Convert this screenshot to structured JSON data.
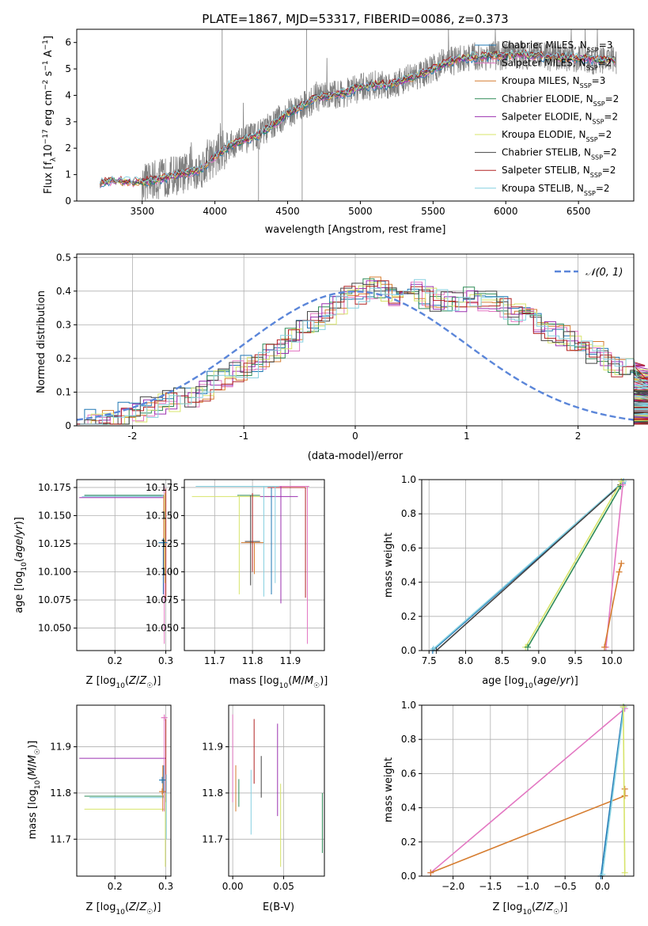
{
  "figure": {
    "title": "PLATE=1867, MJD=53317, FIBERID=0086, z=0.373"
  },
  "colors": {
    "Chabrier MILES": "#1f77b4",
    "Salpeter MILES": "#e377c2",
    "Kroupa MILES": "#d67d30",
    "Chabrier ELODIE": "#2e8b57",
    "Salpeter ELODIE": "#9b30b0",
    "Kroupa ELODIE": "#d7e46a",
    "Chabrier STELIB": "#444444",
    "Salpeter STELIB": "#b22222",
    "Kroupa STELIB": "#86d0e0",
    "observed": "#808080",
    "normal": "#5b86d9"
  },
  "legend": [
    {
      "name": "Chabrier MILES",
      "nssp": "3"
    },
    {
      "name": "Salpeter MILES",
      "nssp": "2"
    },
    {
      "name": "Kroupa MILES",
      "nssp": "3"
    },
    {
      "name": "Chabrier ELODIE",
      "nssp": "2"
    },
    {
      "name": "Salpeter ELODIE",
      "nssp": "2"
    },
    {
      "name": "Kroupa ELODIE",
      "nssp": "2"
    },
    {
      "name": "Chabrier STELIB",
      "nssp": "2"
    },
    {
      "name": "Salpeter STELIB",
      "nssp": "2"
    },
    {
      "name": "Kroupa STELIB",
      "nssp": "2"
    }
  ],
  "chart_data": [
    {
      "id": "spectrum",
      "type": "line",
      "xlabel": "wavelength [Angstrom, rest frame]",
      "ylabel": "Flux [f_λ 10^-17 erg cm^-2 s^-1 A^-1]",
      "xlim": [
        3050,
        6880
      ],
      "ylim": [
        0,
        6.5
      ],
      "xticks": [
        3500,
        4000,
        4500,
        5000,
        5500,
        6000,
        6500
      ],
      "yticks": [
        0,
        1,
        2,
        3,
        4,
        5,
        6
      ],
      "grid": false,
      "legend_position": "right",
      "model_continuum": [
        [
          3210,
          0.7
        ],
        [
          3300,
          0.78
        ],
        [
          3400,
          0.72
        ],
        [
          3500,
          0.72
        ],
        [
          3600,
          0.8
        ],
        [
          3700,
          0.95
        ],
        [
          3800,
          1.05
        ],
        [
          3900,
          1.2
        ],
        [
          4000,
          1.7
        ],
        [
          4100,
          2.1
        ],
        [
          4200,
          2.3
        ],
        [
          4300,
          2.5
        ],
        [
          4400,
          2.9
        ],
        [
          4500,
          3.3
        ],
        [
          4600,
          3.6
        ],
        [
          4700,
          3.9
        ],
        [
          4800,
          4.0
        ],
        [
          4900,
          4.1
        ],
        [
          5000,
          4.3
        ],
        [
          5100,
          4.4
        ],
        [
          5200,
          4.4
        ],
        [
          5300,
          4.6
        ],
        [
          5400,
          4.75
        ],
        [
          5500,
          5.0
        ],
        [
          5600,
          5.25
        ],
        [
          5700,
          5.4
        ],
        [
          5800,
          5.45
        ],
        [
          5900,
          5.5
        ],
        [
          6000,
          5.5
        ],
        [
          6100,
          5.55
        ],
        [
          6200,
          5.5
        ],
        [
          6300,
          5.45
        ],
        [
          6400,
          5.45
        ],
        [
          6500,
          5.4
        ],
        [
          6600,
          5.35
        ],
        [
          6700,
          5.35
        ],
        [
          6760,
          5.3
        ]
      ]
    },
    {
      "id": "residuals",
      "type": "line",
      "xlabel": "(data-model)/error",
      "ylabel": "Normed distribution",
      "xlim": [
        -2.5,
        2.5
      ],
      "ylim": [
        0,
        0.51
      ],
      "xticks": [
        -2,
        -1,
        0,
        1,
        2
      ],
      "yticks": [
        0.0,
        0.1,
        0.2,
        0.3,
        0.4,
        0.5
      ],
      "grid": true,
      "legend_position": "upper right",
      "legend_label": "𝒩(0, 1)",
      "bin_width": 0.1,
      "base_hist": [
        0.01,
        0.015,
        0.02,
        0.025,
        0.035,
        0.045,
        0.055,
        0.06,
        0.075,
        0.08,
        0.09,
        0.105,
        0.13,
        0.15,
        0.16,
        0.175,
        0.195,
        0.215,
        0.235,
        0.255,
        0.28,
        0.305,
        0.33,
        0.355,
        0.38,
        0.395,
        0.41,
        0.4,
        0.39,
        0.395,
        0.4,
        0.38,
        0.37,
        0.365,
        0.37,
        0.385,
        0.375,
        0.37,
        0.35,
        0.33,
        0.32,
        0.3,
        0.28,
        0.27,
        0.25,
        0.235,
        0.22,
        0.2,
        0.18,
        0.17,
        0.16,
        0.15,
        0.135,
        0.12,
        0.1,
        0.085,
        0.07,
        0.055,
        0.04,
        0.035,
        0.03,
        0.03,
        0.03,
        0.035,
        0.035,
        0.03
      ]
    },
    {
      "id": "age-vs-Z",
      "type": "scatter",
      "xlabel": "Z [log10(Z/Z☉)]",
      "ylabel": "age  [log10(age/yr)]",
      "xlim": [
        0.125,
        0.31
      ],
      "ylim": [
        10.03,
        10.182
      ],
      "xticks": [
        0.2,
        0.3
      ],
      "xticklabels": [
        "0.2",
        "0.3"
      ],
      "yticks": [
        10.05,
        10.075,
        10.1,
        10.125,
        10.15,
        10.175
      ],
      "yticklabels": [
        "10.050",
        "10.075",
        "10.100",
        "10.125",
        "10.150",
        "10.175"
      ],
      "grid": true
    },
    {
      "id": "age-vs-mass",
      "type": "scatter",
      "xlabel": "mass [log10(M/M☉)]",
      "xlim": [
        11.62,
        11.99
      ],
      "ylim": [
        10.03,
        10.182
      ],
      "xticks": [
        11.7,
        11.8,
        11.9
      ],
      "xticklabels": [
        "11.7",
        "11.8",
        "11.9"
      ],
      "yticks": [
        10.05,
        10.075,
        10.1,
        10.125,
        10.15,
        10.175
      ],
      "yticklabels": [
        "10.050",
        "10.075",
        "10.100",
        "10.125",
        "10.150",
        "10.175"
      ],
      "grid": true
    },
    {
      "id": "massweight-vs-age",
      "type": "line",
      "xlabel": "age  [log10(age/yr)]",
      "ylabel": "mass weight",
      "xlim": [
        7.4,
        10.3
      ],
      "ylim": [
        0,
        1
      ],
      "xticks": [
        7.5,
        8.0,
        8.5,
        9.0,
        9.5,
        10.0
      ],
      "xticklabels": [
        "7.5",
        "8.0",
        "8.5",
        "9.0",
        "9.5",
        "10.0"
      ],
      "yticks": [
        0,
        0.2,
        0.4,
        0.6,
        0.8,
        1.0
      ],
      "yticklabels": [
        "0.0",
        "0.2",
        "0.4",
        "0.6",
        "0.8",
        "1.0"
      ],
      "grid": true,
      "series": [
        {
          "model": "Chabrier MILES",
          "points": [
            [
              7.55,
              0.0
            ],
            [
              10.15,
              0.98
            ]
          ]
        },
        {
          "model": "Kroupa STELIB",
          "points": [
            [
              7.56,
              0.01
            ],
            [
              10.16,
              0.99
            ]
          ]
        },
        {
          "model": "Chabrier STELIB",
          "points": [
            [
              7.6,
              0.0
            ],
            [
              10.12,
              0.97
            ]
          ]
        },
        {
          "model": "Kroupa ELODIE",
          "points": [
            [
              8.82,
              0.02
            ],
            [
              10.13,
              0.99
            ]
          ]
        },
        {
          "model": "Chabrier ELODIE",
          "points": [
            [
              8.85,
              0.02
            ],
            [
              10.12,
              0.96
            ]
          ]
        },
        {
          "model": "Salpeter MILES",
          "points": [
            [
              9.92,
              0.02
            ],
            [
              10.15,
              0.97
            ]
          ]
        },
        {
          "model": "Kroupa MILES",
          "points": [
            [
              9.9,
              0.02
            ],
            [
              10.1,
              0.46
            ],
            [
              10.13,
              0.51
            ]
          ]
        }
      ]
    },
    {
      "id": "mass-vs-Z",
      "type": "scatter",
      "xlabel": "Z [log10(Z/Z☉)]",
      "ylabel": "mass [log10(M/M☉)]",
      "xlim": [
        0.125,
        0.31
      ],
      "ylim": [
        11.62,
        11.99
      ],
      "xticks": [
        0.2,
        0.3
      ],
      "xticklabels": [
        "0.2",
        "0.3"
      ],
      "yticks": [
        11.7,
        11.8,
        11.9
      ],
      "yticklabels": [
        "11.7",
        "11.8",
        "11.9"
      ],
      "grid": true
    },
    {
      "id": "mass-vs-EBV",
      "type": "scatter",
      "xlabel": "E(B-V)",
      "xlim": [
        -0.004,
        0.09
      ],
      "ylim": [
        11.62,
        11.99
      ],
      "xticks": [
        0.0,
        0.05
      ],
      "xticklabels": [
        "0.00",
        "0.05"
      ],
      "yticks": [
        11.7,
        11.8,
        11.9
      ],
      "yticklabels": [
        "11.7",
        "11.8",
        "11.9"
      ],
      "grid": true,
      "series": [
        {
          "model": "Salpeter MILES",
          "x": 0.0,
          "y": [
            11.78,
            11.97
          ]
        },
        {
          "model": "Kroupa MILES",
          "x": 0.003,
          "y": [
            11.76,
            11.86
          ]
        },
        {
          "model": "Chabrier ELODIE",
          "x": 0.006,
          "y": [
            11.77,
            11.83
          ]
        },
        {
          "model": "Kroupa STELIB",
          "x": 0.018,
          "y": [
            11.71,
            11.85
          ]
        },
        {
          "model": "Salpeter STELIB",
          "x": 0.021,
          "y": [
            11.82,
            11.96
          ]
        },
        {
          "model": "Chabrier STELIB",
          "x": 0.028,
          "y": [
            11.79,
            11.88
          ]
        },
        {
          "model": "Salpeter ELODIE",
          "x": 0.044,
          "y": [
            11.75,
            11.95
          ]
        },
        {
          "model": "Kroupa ELODIE",
          "x": 0.047,
          "y": [
            11.64,
            11.82
          ]
        },
        {
          "model": "Chabrier ELODIE",
          "x": 0.088,
          "y": [
            11.67,
            11.8
          ]
        }
      ]
    },
    {
      "id": "massweight-vs-Z",
      "type": "line",
      "xlabel": "Z [log10(Z/Z☉)]",
      "ylabel": "mass weight",
      "xlim": [
        -2.42,
        0.42
      ],
      "ylim": [
        0,
        1
      ],
      "xticks": [
        -2.0,
        -1.5,
        -1.0,
        -0.5,
        0.0
      ],
      "xticklabels": [
        "−2.0",
        "−1.5",
        "−1.0",
        "−0.5",
        "0.0"
      ],
      "yticks": [
        0,
        0.2,
        0.4,
        0.6,
        0.8,
        1.0
      ],
      "yticklabels": [
        "0.0",
        "0.2",
        "0.4",
        "0.6",
        "0.8",
        "1.0"
      ],
      "grid": true,
      "series": [
        {
          "model": "Salpeter MILES",
          "points": [
            [
              -2.3,
              0.02
            ],
            [
              0.3,
              0.98
            ]
          ]
        },
        {
          "model": "Kroupa MILES",
          "points": [
            [
              -2.3,
              0.02
            ],
            [
              0.3,
              0.47
            ],
            [
              0.3,
              0.51
            ]
          ]
        },
        {
          "model": "Chabrier MILES",
          "points": [
            [
              -0.02,
              0.0
            ],
            [
              0.28,
              0.99
            ]
          ]
        },
        {
          "model": "Kroupa STELIB",
          "points": [
            [
              0.0,
              0.01
            ],
            [
              0.29,
              0.99
            ]
          ]
        },
        {
          "model": "Kroupa ELODIE",
          "points": [
            [
              0.3,
              0.02
            ],
            [
              0.28,
              0.99
            ]
          ]
        }
      ]
    }
  ]
}
